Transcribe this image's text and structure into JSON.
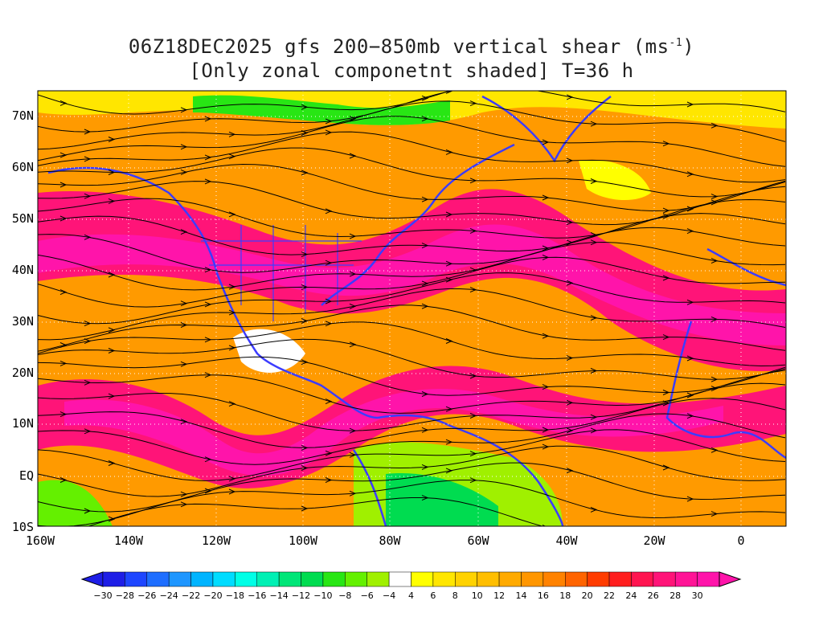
{
  "title": {
    "line1_prefix": "06Z18DEC2025 gfs 200−850mb vertical shear (ms",
    "line1_sup": "-1",
    "line1_suffix": ")",
    "line2": "[Only zonal componetnt shaded] T=36 h"
  },
  "map": {
    "lat_labels": [
      "70N",
      "60N",
      "50N",
      "40N",
      "30N",
      "20N",
      "10N",
      "EQ",
      "10S"
    ],
    "lon_labels": [
      "160W",
      "140W",
      "120W",
      "100W",
      "80W",
      "60W",
      "40W",
      "20W",
      "0"
    ]
  },
  "colorbar": {
    "labels": [
      "−30",
      "−28",
      "−26",
      "−24",
      "−22",
      "−20",
      "−18",
      "−16",
      "−14",
      "−12",
      "−10",
      "−8",
      "−6",
      "−4",
      "4",
      "6",
      "8",
      "10",
      "12",
      "14",
      "16",
      "18",
      "20",
      "22",
      "24",
      "26",
      "28",
      "30"
    ],
    "colors": [
      "#1e1ee6",
      "#1e46ff",
      "#1e6eff",
      "#1e96ff",
      "#00b4ff",
      "#00dcff",
      "#00ffe6",
      "#00f0b4",
      "#00e678",
      "#00dc50",
      "#28e614",
      "#64f000",
      "#a0f000",
      "#ffffff",
      "#ffff00",
      "#ffe600",
      "#ffd200",
      "#ffbe00",
      "#ffaa00",
      "#ff9600",
      "#ff8200",
      "#ff6400",
      "#ff3c00",
      "#ff1e1e",
      "#ff1450",
      "#ff1478",
      "#ff1496",
      "#ff14aa"
    ]
  }
}
